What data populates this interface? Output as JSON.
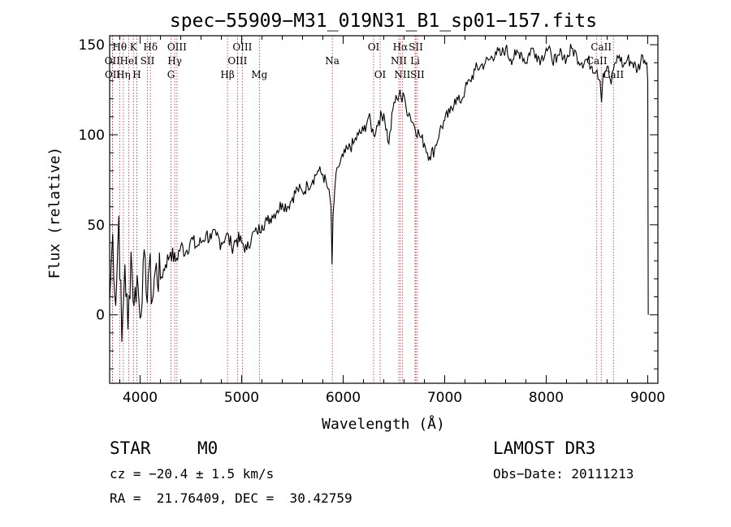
{
  "chart_data": {
    "type": "line",
    "title": "spec−55909−M31_019N31_B1_sp01−157.fits",
    "xlabel": "Wavelength (Å)",
    "ylabel": "Flux (relative)",
    "xlim": [
      3700,
      9100
    ],
    "ylim": [
      -38,
      155
    ],
    "x_ticks": [
      4000,
      5000,
      6000,
      7000,
      8000,
      9000
    ],
    "x_tick_labels": [
      "4000",
      "5000",
      "6000",
      "7000",
      "8000",
      "9000"
    ],
    "y_ticks": [
      0,
      50,
      100,
      150
    ],
    "y_tick_labels": [
      "0",
      "50",
      "100",
      "150"
    ],
    "series": [
      {
        "name": "flux",
        "color": "#000000",
        "x": [
          3700,
          3730,
          3760,
          3790,
          3820,
          3850,
          3880,
          3910,
          3940,
          3970,
          4000,
          4030,
          4060,
          4090,
          4120,
          4150,
          4200,
          4250,
          4300,
          4350,
          4400,
          4450,
          4500,
          4550,
          4600,
          4650,
          4700,
          4750,
          4800,
          4850,
          4900,
          4950,
          5000,
          5050,
          5100,
          5150,
          5200,
          5250,
          5300,
          5350,
          5400,
          5450,
          5500,
          5550,
          5600,
          5650,
          5700,
          5750,
          5800,
          5850,
          5880,
          5890,
          5900,
          5920,
          5950,
          6000,
          6050,
          6100,
          6150,
          6200,
          6250,
          6300,
          6350,
          6400,
          6450,
          6500,
          6530,
          6560,
          6580,
          6600,
          6620,
          6650,
          6700,
          6750,
          6800,
          6850,
          6900,
          6950,
          7000,
          7050,
          7100,
          7150,
          7200,
          7250,
          7300,
          7350,
          7400,
          7450,
          7500,
          7550,
          7600,
          7650,
          7700,
          7750,
          7800,
          7850,
          7900,
          7950,
          8000,
          8050,
          8100,
          8150,
          8200,
          8250,
          8300,
          8350,
          8400,
          8450,
          8500,
          8530,
          8545,
          8560,
          8600,
          8640,
          8662,
          8680,
          8720,
          8760,
          8800,
          8850,
          8900,
          8950,
          8990,
          9000,
          9005
        ],
        "y": [
          8,
          45,
          5,
          55,
          -15,
          28,
          -8,
          35,
          5,
          22,
          -2,
          30,
          12,
          28,
          8,
          25,
          20,
          28,
          35,
          30,
          38,
          35,
          42,
          38,
          40,
          45,
          42,
          44,
          40,
          45,
          38,
          42,
          40,
          36,
          44,
          46,
          50,
          52,
          55,
          58,
          62,
          60,
          65,
          70,
          68,
          72,
          75,
          80,
          78,
          70,
          60,
          28,
          55,
          72,
          82,
          88,
          92,
          95,
          100,
          102,
          110,
          100,
          108,
          112,
          95,
          118,
          120,
          125,
          118,
          122,
          115,
          112,
          105,
          100,
          95,
          88,
          92,
          102,
          108,
          112,
          120,
          118,
          125,
          130,
          136,
          138,
          140,
          142,
          146,
          144,
          148,
          142,
          144,
          146,
          140,
          148,
          145,
          142,
          148,
          144,
          140,
          146,
          142,
          148,
          144,
          140,
          142,
          138,
          136,
          130,
          118,
          134,
          138,
          128,
          136,
          140,
          144,
          138,
          142,
          140,
          136,
          144,
          140,
          130,
          0
        ]
      }
    ],
    "spectral_lines": [
      {
        "label": "Hθ",
        "wavelength": 3798,
        "row": 1
      },
      {
        "label": "OII",
        "wavelength": 3727,
        "row": 2
      },
      {
        "label": "OII",
        "wavelength": 3729,
        "row": 3
      },
      {
        "label": "Hη",
        "wavelength": 3835,
        "row": 3
      },
      {
        "label": "HeI",
        "wavelength": 3889,
        "row": 2
      },
      {
        "label": "K",
        "wavelength": 3934,
        "row": 1
      },
      {
        "label": "H",
        "wavelength": 3968,
        "row": 3
      },
      {
        "label": "SII",
        "wavelength": 4072,
        "row": 2
      },
      {
        "label": "Hδ",
        "wavelength": 4102,
        "row": 1
      },
      {
        "label": "OIII",
        "wavelength": 4363,
        "row": 1
      },
      {
        "label": "Hγ",
        "wavelength": 4341,
        "row": 2
      },
      {
        "label": "G",
        "wavelength": 4304,
        "row": 3
      },
      {
        "label": "Hβ",
        "wavelength": 4861,
        "row": 3
      },
      {
        "label": "OIII",
        "wavelength": 5007,
        "row": 1
      },
      {
        "label": "OIII",
        "wavelength": 4959,
        "row": 2
      },
      {
        "label": "Mg",
        "wavelength": 5175,
        "row": 3
      },
      {
        "label": "Na",
        "wavelength": 5893,
        "row": 2
      },
      {
        "label": "OI",
        "wavelength": 6300,
        "row": 1
      },
      {
        "label": "OI",
        "wavelength": 6364,
        "row": 3
      },
      {
        "label": "Hα",
        "wavelength": 6563,
        "row": 1
      },
      {
        "label": "NII",
        "wavelength": 6548,
        "row": 2
      },
      {
        "label": "NII",
        "wavelength": 6583,
        "row": 3
      },
      {
        "label": "SII",
        "wavelength": 6716,
        "row": 1
      },
      {
        "label": "Li",
        "wavelength": 6708,
        "row": 2
      },
      {
        "label": "SII",
        "wavelength": 6731,
        "row": 3
      },
      {
        "label": "CaII",
        "wavelength": 8542,
        "row": 1
      },
      {
        "label": "CaII",
        "wavelength": 8498,
        "row": 2
      },
      {
        "label": "CaII",
        "wavelength": 8662,
        "row": 3
      }
    ],
    "line_marker_color": "#b03030"
  },
  "info": {
    "object_class": "STAR",
    "subclass": "M0",
    "survey": "LAMOST DR3",
    "redshift": "cz = −20.4 ± 1.5 km/s",
    "obs_date": "Obs−Date: 20111213",
    "coords": "RA =  21.76409, DEC =  30.42759"
  }
}
